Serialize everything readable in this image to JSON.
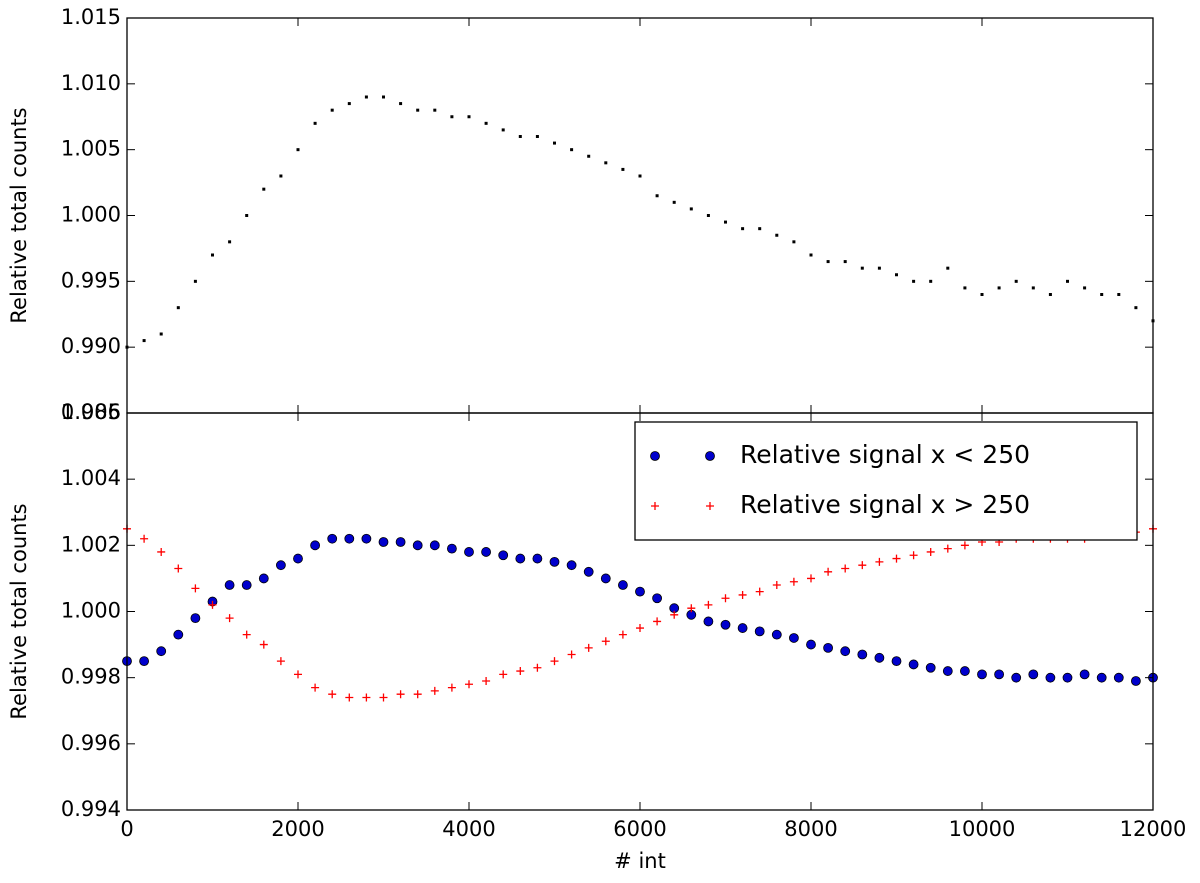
{
  "chart_data": [
    {
      "type": "scatter",
      "ylabel": "Relative total counts",
      "ylim": [
        0.985,
        1.015
      ],
      "yticks": [
        0.985,
        {
          "value": 0.99,
          "label": "0.990"
        },
        0.995,
        {
          "value": 1,
          "label": "1.000"
        },
        1.005,
        {
          "value": 1.01,
          "label": "1.010"
        },
        1.015
      ],
      "xlim": [
        0,
        12000
      ],
      "xticks": [
        0,
        2000,
        4000,
        6000,
        8000,
        10000,
        12000
      ],
      "xtick_labels": false,
      "x": [
        0,
        200,
        400,
        600,
        800,
        1000,
        1200,
        1400,
        1600,
        1800,
        2000,
        2200,
        2400,
        2600,
        2800,
        3000,
        3200,
        3400,
        3600,
        3800,
        4000,
        4200,
        4400,
        4600,
        4800,
        5000,
        5200,
        5400,
        5600,
        5800,
        6000,
        6200,
        6400,
        6600,
        6800,
        7000,
        7200,
        7400,
        7600,
        7800,
        8000,
        8200,
        8400,
        8600,
        8800,
        9000,
        9200,
        9400,
        9600,
        9800,
        10000,
        10200,
        10400,
        10600,
        10800,
        11000,
        11200,
        11400,
        11600,
        11800,
        12000
      ],
      "series": [
        {
          "color": "#000000",
          "marker": ".",
          "values": [
            0.99,
            0.9905,
            0.991,
            0.993,
            0.995,
            0.997,
            0.998,
            1.0,
            1.002,
            1.003,
            1.005,
            1.007,
            1.008,
            1.0085,
            1.009,
            1.009,
            1.0085,
            1.008,
            1.008,
            1.0075,
            1.0075,
            1.007,
            1.0065,
            1.006,
            1.006,
            1.0055,
            1.005,
            1.0045,
            1.004,
            1.0035,
            1.003,
            1.0015,
            1.001,
            1.0005,
            1.0,
            0.9995,
            0.999,
            0.999,
            0.9985,
            0.998,
            0.997,
            0.9965,
            0.9965,
            0.996,
            0.996,
            0.9955,
            0.995,
            0.995,
            0.996,
            0.9945,
            0.994,
            0.9945,
            0.995,
            0.9945,
            0.994,
            0.995,
            0.9945,
            0.994,
            0.994,
            0.993,
            0.992
          ]
        }
      ]
    },
    {
      "type": "scatter",
      "ylabel": "Relative total counts",
      "xlabel": "# int",
      "ylim": [
        0.994,
        1.006
      ],
      "yticks": [
        0.994,
        0.996,
        0.998,
        {
          "value": 1,
          "label": "1.000"
        },
        1.002,
        1.004,
        1.006
      ],
      "xlim": [
        0,
        12000
      ],
      "xticks": [
        0,
        2000,
        4000,
        6000,
        8000,
        10000,
        12000
      ],
      "xtick_labels": true,
      "legend": "upper right",
      "x": [
        0,
        200,
        400,
        600,
        800,
        1000,
        1200,
        1400,
        1600,
        1800,
        2000,
        2200,
        2400,
        2600,
        2800,
        3000,
        3200,
        3400,
        3600,
        3800,
        4000,
        4200,
        4400,
        4600,
        4800,
        5000,
        5200,
        5400,
        5600,
        5800,
        6000,
        6200,
        6400,
        6600,
        6800,
        7000,
        7200,
        7400,
        7600,
        7800,
        8000,
        8200,
        8400,
        8600,
        8800,
        9000,
        9200,
        9400,
        9600,
        9800,
        10000,
        10200,
        10400,
        10600,
        10800,
        11000,
        11200,
        11400,
        11600,
        11800,
        12000
      ],
      "series": [
        {
          "name": "Relative signal x < 250",
          "color": "#0000cc",
          "marker": "o",
          "values": [
            0.9985,
            0.9985,
            0.9988,
            0.9993,
            0.9998,
            1.0003,
            1.0008,
            1.0008,
            1.001,
            1.0014,
            1.0016,
            1.002,
            1.0022,
            1.0022,
            1.0022,
            1.0021,
            1.0021,
            1.002,
            1.002,
            1.0019,
            1.0018,
            1.0018,
            1.0017,
            1.0016,
            1.0016,
            1.0015,
            1.0014,
            1.0012,
            1.001,
            1.0008,
            1.0006,
            1.0004,
            1.0001,
            0.9999,
            0.9997,
            0.9996,
            0.9995,
            0.9994,
            0.9993,
            0.9992,
            0.999,
            0.9989,
            0.9988,
            0.9987,
            0.9986,
            0.9985,
            0.9984,
            0.9983,
            0.9982,
            0.9982,
            0.9981,
            0.9981,
            0.998,
            0.9981,
            0.998,
            0.998,
            0.9981,
            0.998,
            0.998,
            0.9979,
            0.998
          ]
        },
        {
          "name": "Relative signal x > 250",
          "color": "#ff0000",
          "marker": "+",
          "values": [
            1.0025,
            1.0022,
            1.0018,
            1.0013,
            1.0007,
            1.0002,
            0.9998,
            0.9993,
            0.999,
            0.9985,
            0.9981,
            0.9977,
            0.9975,
            0.9974,
            0.9974,
            0.9974,
            0.9975,
            0.9975,
            0.9976,
            0.9977,
            0.9978,
            0.9979,
            0.9981,
            0.9982,
            0.9983,
            0.9985,
            0.9987,
            0.9989,
            0.9991,
            0.9993,
            0.9995,
            0.9997,
            0.9999,
            1.0001,
            1.0002,
            1.0004,
            1.0005,
            1.0006,
            1.0008,
            1.0009,
            1.001,
            1.0012,
            1.0013,
            1.0014,
            1.0015,
            1.0016,
            1.0017,
            1.0018,
            1.0019,
            1.002,
            1.0021,
            1.0021,
            1.0022,
            1.0022,
            1.0022,
            1.0022,
            1.0022,
            1.0023,
            1.0023,
            1.0024,
            1.0025
          ]
        }
      ]
    }
  ]
}
